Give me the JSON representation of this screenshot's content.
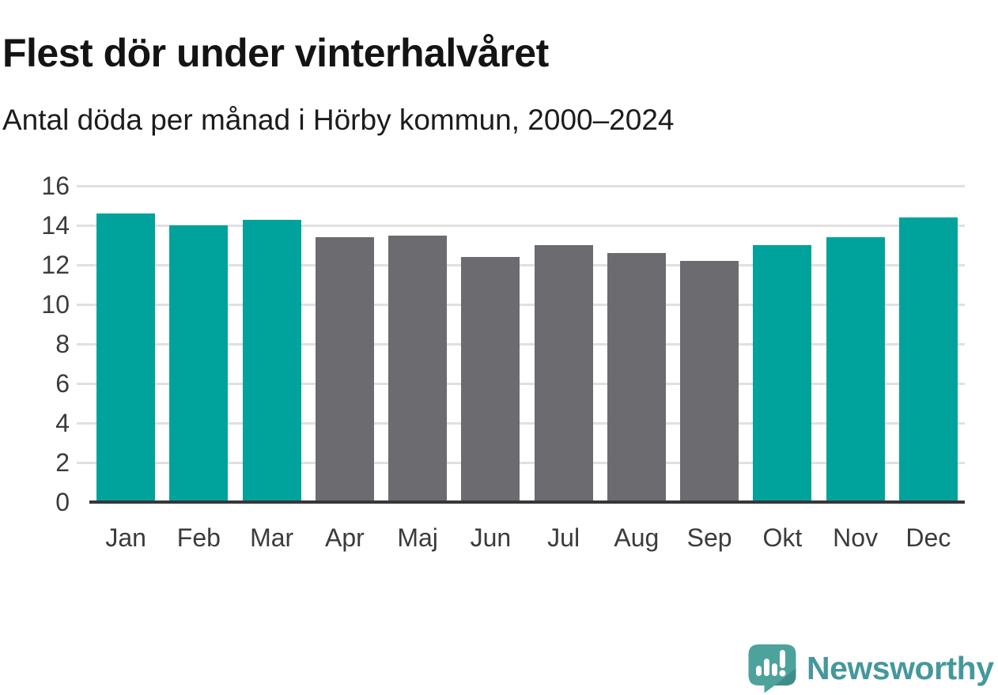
{
  "header": {
    "title": "Flest dör under vinterhalvåret",
    "subtitle": "Antal döda per månad i Hörby kommun, 2000–2024"
  },
  "chart_data": {
    "type": "bar",
    "title": "Flest dör under vinterhalvåret",
    "subtitle": "Antal döda per månad i Hörby kommun, 2000–2024",
    "categories": [
      "Jan",
      "Feb",
      "Mar",
      "Apr",
      "Maj",
      "Jun",
      "Jul",
      "Aug",
      "Sep",
      "Okt",
      "Nov",
      "Dec"
    ],
    "values": [
      14.6,
      14.0,
      14.3,
      13.4,
      13.5,
      12.4,
      13.0,
      12.6,
      12.2,
      13.0,
      13.4,
      14.4
    ],
    "bar_roles": [
      "highlight",
      "highlight",
      "highlight",
      "base",
      "base",
      "base",
      "base",
      "base",
      "base",
      "highlight",
      "highlight",
      "highlight"
    ],
    "xlabel": "",
    "ylabel": "",
    "ylim": [
      0,
      16
    ],
    "yticks": [
      0,
      2,
      4,
      6,
      8,
      10,
      12,
      14,
      16
    ],
    "grid": true,
    "legend_position": "none",
    "colors": {
      "highlight": "#00a39b",
      "base": "#6b6b70",
      "gridline": "#e0e0e0",
      "axis_line": "#36363b",
      "tick_label": "#3b3b3b"
    }
  },
  "footer": {
    "brand": "Newsworthy",
    "logo_icon": "newsworthy-speech-bubble-chart-icon",
    "brand_color": "#45989b",
    "logo_fill": "#4ea29c",
    "logo_shade": "#3f8d89"
  }
}
